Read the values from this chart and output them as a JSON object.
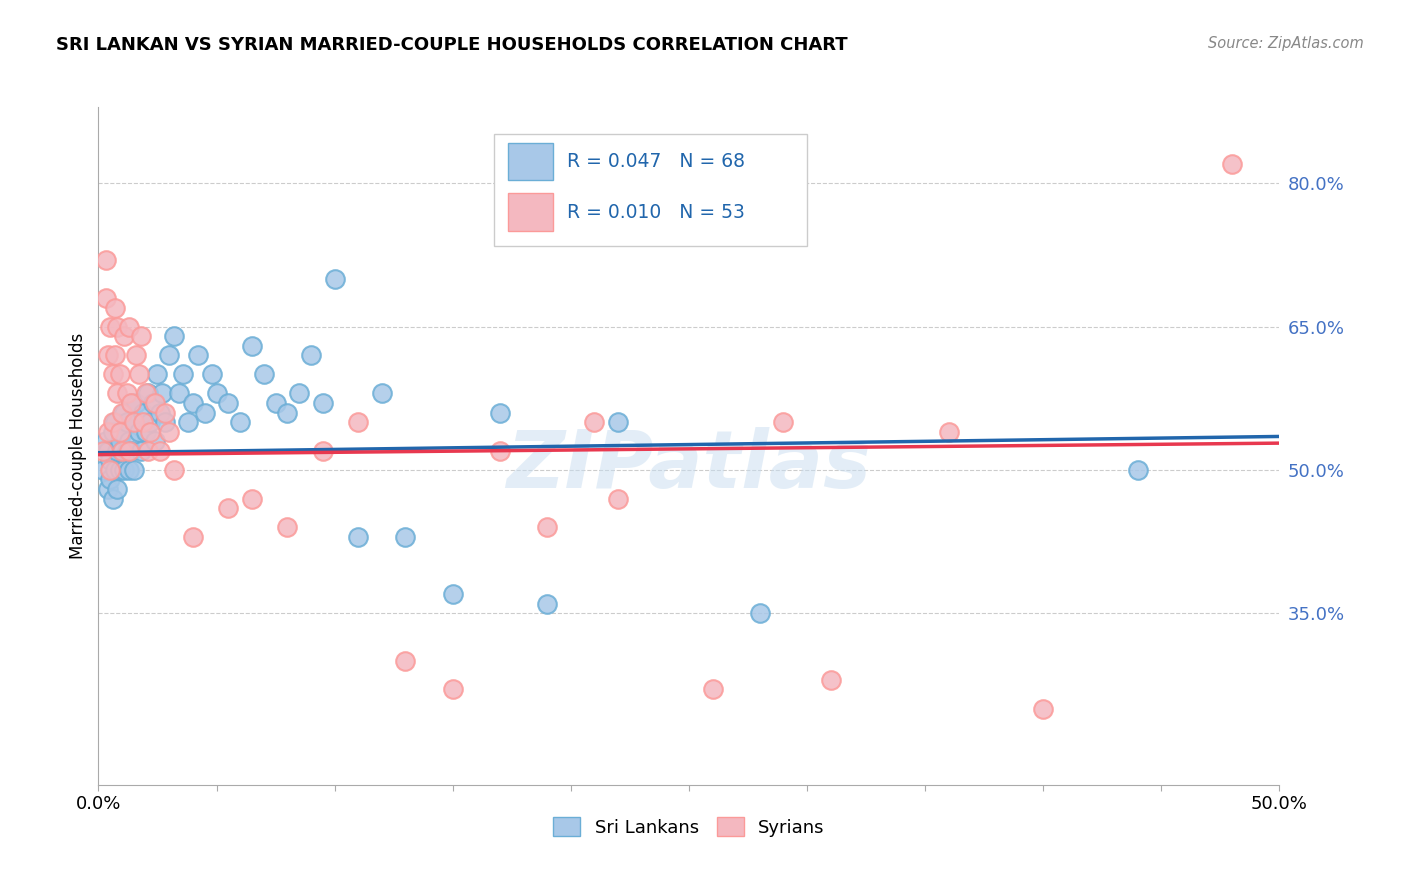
{
  "title": "SRI LANKAN VS SYRIAN MARRIED-COUPLE HOUSEHOLDS CORRELATION CHART",
  "source": "Source: ZipAtlas.com",
  "ylabel": "Married-couple Households",
  "ytick_labels": [
    "80.0%",
    "65.0%",
    "50.0%",
    "35.0%"
  ],
  "ytick_values": [
    0.8,
    0.65,
    0.5,
    0.35
  ],
  "xlim": [
    0.0,
    0.5
  ],
  "ylim": [
    0.17,
    0.88
  ],
  "sri_lankan_R": "0.047",
  "sri_lankan_N": "68",
  "syrian_R": "0.010",
  "syrian_N": "53",
  "sri_lankan_color": "#a8c8e8",
  "syrian_color": "#f4b8c0",
  "sri_lankan_edge": "#6baed6",
  "syrian_edge": "#fb9a99",
  "trend_sri_color": "#2166ac",
  "trend_syrian_color": "#e8384f",
  "background_color": "#ffffff",
  "watermark": "ZIPatlas",
  "legend_text_color": "#2166ac",
  "sri_lankans_x": [
    0.002,
    0.003,
    0.004,
    0.004,
    0.005,
    0.005,
    0.006,
    0.006,
    0.007,
    0.007,
    0.008,
    0.008,
    0.009,
    0.009,
    0.01,
    0.01,
    0.011,
    0.011,
    0.012,
    0.012,
    0.013,
    0.013,
    0.014,
    0.014,
    0.015,
    0.015,
    0.016,
    0.017,
    0.018,
    0.019,
    0.02,
    0.021,
    0.022,
    0.023,
    0.024,
    0.025,
    0.026,
    0.027,
    0.028,
    0.03,
    0.032,
    0.034,
    0.036,
    0.038,
    0.04,
    0.042,
    0.045,
    0.048,
    0.05,
    0.055,
    0.06,
    0.065,
    0.07,
    0.075,
    0.08,
    0.085,
    0.09,
    0.095,
    0.1,
    0.11,
    0.12,
    0.13,
    0.15,
    0.17,
    0.19,
    0.22,
    0.28,
    0.44
  ],
  "sri_lankans_y": [
    0.5,
    0.53,
    0.48,
    0.52,
    0.51,
    0.49,
    0.54,
    0.47,
    0.55,
    0.5,
    0.52,
    0.48,
    0.53,
    0.5,
    0.52,
    0.54,
    0.5,
    0.56,
    0.52,
    0.55,
    0.53,
    0.5,
    0.57,
    0.52,
    0.55,
    0.5,
    0.57,
    0.54,
    0.52,
    0.56,
    0.54,
    0.58,
    0.55,
    0.57,
    0.53,
    0.6,
    0.56,
    0.58,
    0.55,
    0.62,
    0.64,
    0.58,
    0.6,
    0.55,
    0.57,
    0.62,
    0.56,
    0.6,
    0.58,
    0.57,
    0.55,
    0.63,
    0.6,
    0.57,
    0.56,
    0.58,
    0.62,
    0.57,
    0.7,
    0.43,
    0.58,
    0.43,
    0.37,
    0.56,
    0.36,
    0.55,
    0.35,
    0.5
  ],
  "syrians_x": [
    0.002,
    0.003,
    0.003,
    0.004,
    0.004,
    0.005,
    0.005,
    0.006,
    0.006,
    0.007,
    0.007,
    0.008,
    0.008,
    0.009,
    0.009,
    0.01,
    0.01,
    0.011,
    0.012,
    0.013,
    0.013,
    0.014,
    0.015,
    0.016,
    0.017,
    0.018,
    0.019,
    0.02,
    0.021,
    0.022,
    0.024,
    0.026,
    0.028,
    0.03,
    0.032,
    0.04,
    0.055,
    0.065,
    0.08,
    0.095,
    0.11,
    0.13,
    0.15,
    0.17,
    0.19,
    0.21,
    0.22,
    0.26,
    0.29,
    0.31,
    0.36,
    0.4,
    0.48
  ],
  "syrians_y": [
    0.52,
    0.72,
    0.68,
    0.62,
    0.54,
    0.65,
    0.5,
    0.6,
    0.55,
    0.67,
    0.62,
    0.58,
    0.65,
    0.54,
    0.6,
    0.52,
    0.56,
    0.64,
    0.58,
    0.65,
    0.52,
    0.57,
    0.55,
    0.62,
    0.6,
    0.64,
    0.55,
    0.58,
    0.52,
    0.54,
    0.57,
    0.52,
    0.56,
    0.54,
    0.5,
    0.43,
    0.46,
    0.47,
    0.44,
    0.52,
    0.55,
    0.3,
    0.27,
    0.52,
    0.44,
    0.55,
    0.47,
    0.27,
    0.55,
    0.28,
    0.54,
    0.25,
    0.82
  ]
}
